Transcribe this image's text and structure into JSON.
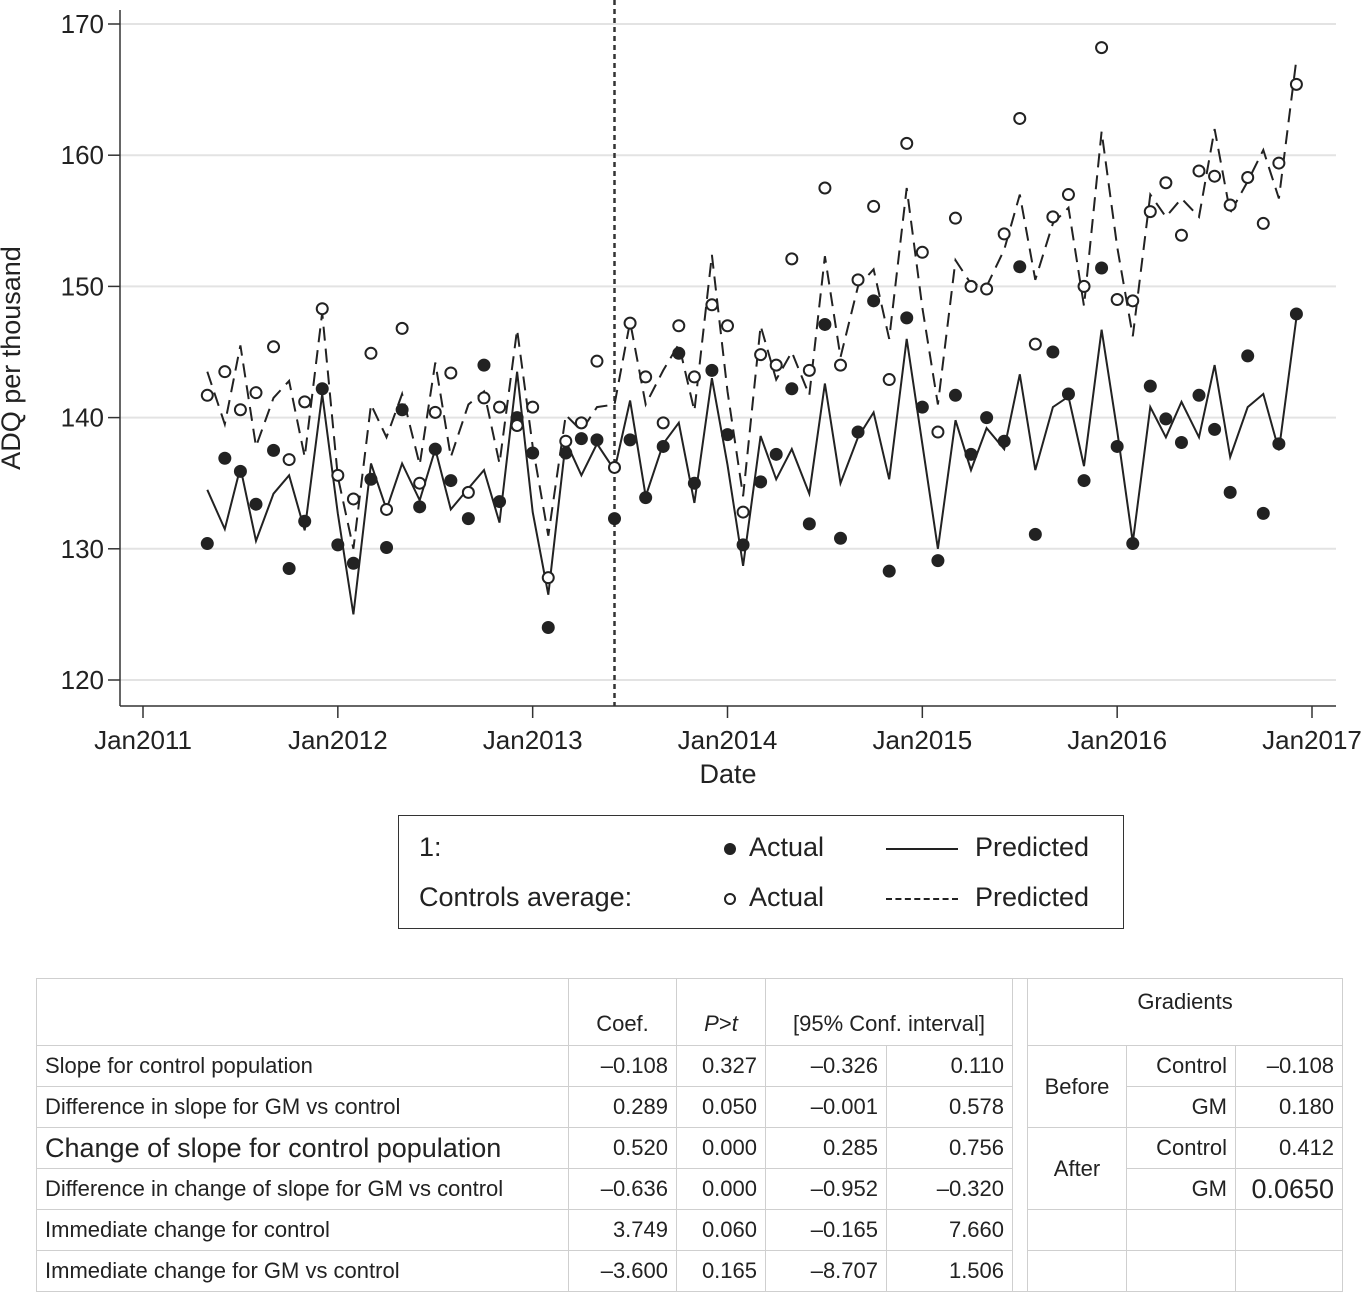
{
  "chart_data": {
    "type": "scatter",
    "ylabel": "ADQ per thousand",
    "xlabel": "Date",
    "ylim": [
      118,
      172
    ],
    "yticks": [
      120,
      130,
      140,
      150,
      160,
      170
    ],
    "xlim": [
      2010.9,
      2017.05
    ],
    "xticks": [
      {
        "value": 2011,
        "label": "Jan2011"
      },
      {
        "value": 2012,
        "label": "Jan2012"
      },
      {
        "value": 2013,
        "label": "Jan2013"
      },
      {
        "value": 2014,
        "label": "Jan2014"
      },
      {
        "value": 2015,
        "label": "Jan2015"
      },
      {
        "value": 2016,
        "label": "Jan2016"
      },
      {
        "value": 2017,
        "label": "Jan2017"
      }
    ],
    "intervention_x": 2013.42,
    "grid": true,
    "series": [
      {
        "name": "GM Actual",
        "group": "1",
        "style": "filled-marker",
        "x": [
          2011.33,
          2011.42,
          2011.5,
          2011.58,
          2011.67,
          2011.75,
          2011.83,
          2011.92,
          2012.0,
          2012.08,
          2012.17,
          2012.25,
          2012.33,
          2012.42,
          2012.5,
          2012.58,
          2012.67,
          2012.75,
          2012.83,
          2012.92,
          2013.0,
          2013.08,
          2013.17,
          2013.25,
          2013.33,
          2013.42,
          2013.5,
          2013.58,
          2013.67,
          2013.75,
          2013.83,
          2013.92,
          2014.0,
          2014.08,
          2014.17,
          2014.25,
          2014.33,
          2014.42,
          2014.5,
          2014.58,
          2014.67,
          2014.75,
          2014.83,
          2014.92,
          2015.0,
          2015.08,
          2015.17,
          2015.25,
          2015.33,
          2015.42,
          2015.5,
          2015.58,
          2015.67,
          2015.75,
          2015.83,
          2015.92,
          2016.0,
          2016.08,
          2016.17,
          2016.25,
          2016.33,
          2016.42,
          2016.5,
          2016.58,
          2016.67,
          2016.75,
          2016.83,
          2016.92
        ],
        "values": [
          130.4,
          136.9,
          135.9,
          133.4,
          137.5,
          128.5,
          132.1,
          142.2,
          130.3,
          128.9,
          135.3,
          130.1,
          140.6,
          133.2,
          137.6,
          135.2,
          132.3,
          144.0,
          133.6,
          140.0,
          137.3,
          124.0,
          137.3,
          138.4,
          138.3,
          132.3,
          138.3,
          133.9,
          137.8,
          144.9,
          135.0,
          143.6,
          138.7,
          130.3,
          135.1,
          137.2,
          142.2,
          131.9,
          147.1,
          130.8,
          138.9,
          148.9,
          128.3,
          147.6,
          140.8,
          129.1,
          141.7,
          137.2,
          140.0,
          138.2,
          151.5,
          131.1,
          145.0,
          141.8,
          135.2,
          151.4,
          137.8,
          130.4,
          142.4,
          139.9,
          138.1,
          141.7,
          139.1,
          134.3,
          144.7,
          132.7,
          138.0,
          147.9
        ]
      },
      {
        "name": "GM Predicted",
        "group": "1",
        "style": "solid-line",
        "x": [
          2011.33,
          2011.42,
          2011.5,
          2011.58,
          2011.67,
          2011.75,
          2011.83,
          2011.92,
          2012.0,
          2012.08,
          2012.17,
          2012.25,
          2012.33,
          2012.42,
          2012.5,
          2012.58,
          2012.67,
          2012.75,
          2012.83,
          2012.92,
          2013.0,
          2013.08,
          2013.17,
          2013.25,
          2013.33,
          2013.42,
          2013.5,
          2013.58,
          2013.67,
          2013.75,
          2013.83,
          2013.92,
          2014.0,
          2014.08,
          2014.17,
          2014.25,
          2014.33,
          2014.42,
          2014.5,
          2014.58,
          2014.67,
          2014.75,
          2014.83,
          2014.92,
          2015.0,
          2015.08,
          2015.17,
          2015.25,
          2015.33,
          2015.42,
          2015.5,
          2015.58,
          2015.67,
          2015.75,
          2015.83,
          2015.92,
          2016.0,
          2016.08,
          2016.17,
          2016.25,
          2016.33,
          2016.42,
          2016.5,
          2016.58,
          2016.67,
          2016.75,
          2016.83,
          2016.92
        ],
        "values": [
          134.5,
          131.5,
          136.2,
          130.6,
          134.2,
          135.6,
          131.4,
          141.8,
          132.7,
          125.0,
          136.5,
          133.0,
          136.5,
          133.7,
          137.6,
          133.0,
          134.6,
          136.0,
          132.0,
          143.5,
          132.8,
          126.5,
          138.2,
          135.6,
          138.0,
          136.0,
          141.3,
          134.0,
          138.0,
          139.6,
          133.5,
          143.0,
          136.4,
          128.7,
          138.6,
          135.3,
          137.6,
          134.2,
          142.6,
          135.0,
          138.5,
          140.4,
          135.3,
          146.0,
          138.0,
          130.0,
          139.8,
          136.0,
          139.2,
          137.6,
          143.3,
          136.0,
          140.8,
          141.6,
          136.3,
          146.7,
          139.0,
          130.5,
          140.8,
          138.5,
          141.2,
          138.5,
          144.0,
          137.0,
          140.8,
          141.8,
          137.5,
          147.6
        ]
      },
      {
        "name": "Controls Actual",
        "group": "Controls average",
        "style": "hollow-marker",
        "x": [
          2011.33,
          2011.42,
          2011.5,
          2011.58,
          2011.67,
          2011.75,
          2011.83,
          2011.92,
          2012.0,
          2012.08,
          2012.17,
          2012.25,
          2012.33,
          2012.42,
          2012.5,
          2012.58,
          2012.67,
          2012.75,
          2012.83,
          2012.92,
          2013.0,
          2013.08,
          2013.17,
          2013.25,
          2013.33,
          2013.42,
          2013.5,
          2013.58,
          2013.67,
          2013.75,
          2013.83,
          2013.92,
          2014.0,
          2014.08,
          2014.17,
          2014.25,
          2014.33,
          2014.42,
          2014.5,
          2014.58,
          2014.67,
          2014.75,
          2014.83,
          2014.92,
          2015.0,
          2015.08,
          2015.17,
          2015.25,
          2015.33,
          2015.42,
          2015.5,
          2015.58,
          2015.67,
          2015.75,
          2015.83,
          2015.92,
          2016.0,
          2016.08,
          2016.17,
          2016.25,
          2016.33,
          2016.42,
          2016.5,
          2016.58,
          2016.67,
          2016.75,
          2016.83,
          2016.92
        ],
        "values": [
          141.7,
          143.5,
          140.6,
          141.9,
          145.4,
          136.8,
          141.2,
          148.3,
          135.6,
          133.8,
          144.9,
          133.0,
          146.8,
          135.0,
          140.4,
          143.4,
          134.3,
          141.5,
          140.8,
          139.4,
          140.8,
          127.8,
          138.2,
          139.6,
          144.3,
          136.2,
          147.2,
          143.1,
          139.6,
          147.0,
          143.1,
          148.6,
          147.0,
          132.8,
          144.8,
          144.0,
          152.1,
          143.6,
          157.5,
          144.0,
          150.5,
          156.1,
          142.9,
          160.9,
          152.6,
          138.9,
          155.2,
          150.0,
          149.8,
          154.0,
          162.8,
          145.6,
          155.3,
          157.0,
          150.0,
          168.2,
          149.0,
          148.9,
          155.7,
          157.9,
          153.9,
          158.8,
          158.4,
          156.2,
          158.3,
          154.8,
          159.4,
          165.4
        ]
      },
      {
        "name": "Controls Predicted",
        "group": "Controls average",
        "style": "dashed-line",
        "x": [
          2011.33,
          2011.42,
          2011.5,
          2011.58,
          2011.67,
          2011.75,
          2011.83,
          2011.92,
          2012.0,
          2012.08,
          2012.17,
          2012.25,
          2012.33,
          2012.42,
          2012.5,
          2012.58,
          2012.67,
          2012.75,
          2012.83,
          2012.92,
          2013.0,
          2013.08,
          2013.17,
          2013.25,
          2013.33,
          2013.42,
          2013.5,
          2013.58,
          2013.67,
          2013.75,
          2013.83,
          2013.92,
          2014.0,
          2014.08,
          2014.17,
          2014.25,
          2014.33,
          2014.42,
          2014.5,
          2014.58,
          2014.67,
          2014.75,
          2014.83,
          2014.92,
          2015.0,
          2015.08,
          2015.17,
          2015.25,
          2015.33,
          2015.42,
          2015.5,
          2015.58,
          2015.67,
          2015.75,
          2015.83,
          2015.92,
          2016.0,
          2016.08,
          2016.17,
          2016.25,
          2016.33,
          2016.42,
          2016.5,
          2016.58,
          2016.67,
          2016.75,
          2016.83,
          2016.92
        ],
        "values": [
          143.5,
          139.5,
          145.5,
          137.8,
          141.5,
          142.8,
          137.0,
          148.0,
          135.5,
          130.0,
          141.0,
          138.5,
          141.8,
          136.4,
          144.2,
          137.0,
          141.0,
          142.0,
          136.5,
          146.7,
          137.8,
          131.0,
          140.2,
          139.0,
          140.8,
          141.0,
          147.3,
          141.0,
          143.6,
          145.6,
          140.5,
          152.4,
          142.0,
          134.0,
          147.0,
          142.9,
          145.0,
          141.7,
          152.3,
          144.6,
          150.0,
          151.3,
          146.0,
          157.5,
          148.4,
          141.0,
          152.0,
          150.2,
          150.0,
          152.8,
          157.0,
          150.5,
          154.8,
          156.0,
          148.5,
          161.8,
          153.0,
          146.2,
          157.0,
          155.3,
          156.7,
          155.3,
          162.0,
          155.6,
          158.0,
          160.4,
          156.7,
          167.3
        ]
      }
    ]
  },
  "legend": {
    "row1_label": "1:",
    "row2_label": "Controls average:",
    "actual_label": "Actual",
    "predicted_label": "Predicted"
  },
  "table": {
    "headers": {
      "coef": "Coef.",
      "p_prefix": "P",
      "p_suffix": ">",
      "p_t": "t",
      "ci": "[95% Conf. interval]",
      "gradients": "Gradients"
    },
    "rows": [
      {
        "label": "Slope for control population",
        "coef": "–0.108",
        "p": "0.327",
        "lo": "–0.326",
        "hi": "0.110"
      },
      {
        "label": "Difference in slope for GM vs control",
        "coef": "0.289",
        "p": "0.050",
        "lo": "–0.001",
        "hi": "0.578"
      },
      {
        "label": "Change of slope for control population",
        "coef": "0.520",
        "p": "0.000",
        "lo": "0.285",
        "hi": "0.756"
      },
      {
        "label": "Difference in change of slope for GM vs control",
        "coef": "–0.636",
        "p": "0.000",
        "lo": "–0.952",
        "hi": "–0.320"
      },
      {
        "label": "Immediate change for control",
        "coef": "3.749",
        "p": "0.060",
        "lo": "–0.165",
        "hi": "7.660"
      },
      {
        "label": "Immediate change for GM vs control",
        "coef": "–3.600",
        "p": "0.165",
        "lo": "–8.707",
        "hi": "1.506"
      }
    ],
    "gradients": {
      "before_label": "Before",
      "after_label": "After",
      "before_control_label": "Control",
      "before_control": "–0.108",
      "before_gm_label": "GM",
      "before_gm": "0.180",
      "after_control_label": "Control",
      "after_control": "0.412",
      "after_gm_label": "GM",
      "after_gm": "0.0650"
    }
  }
}
